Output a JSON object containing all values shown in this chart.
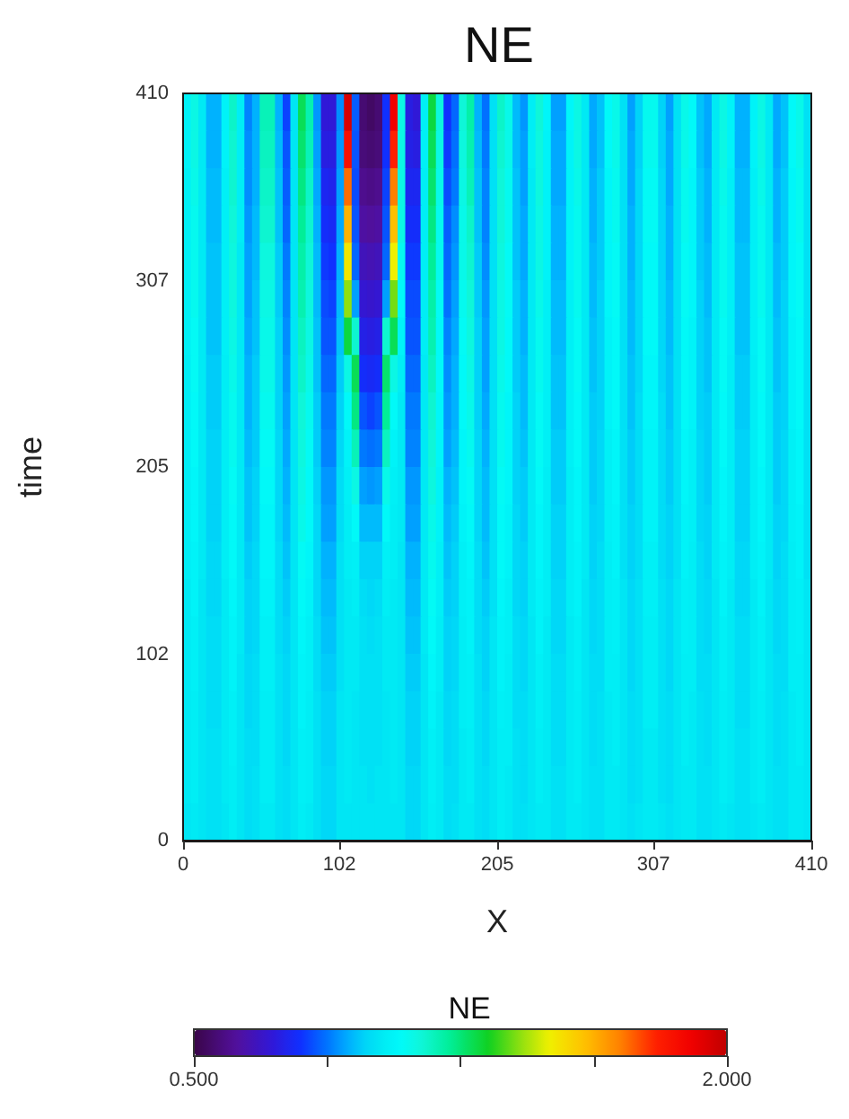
{
  "chart_data": {
    "type": "heatmap",
    "title": "NE",
    "xlabel": "X",
    "ylabel": "time",
    "clabel": "NE",
    "x": [
      2.5,
      7.5,
      12.5,
      17.5,
      22.5,
      27.5,
      32.5,
      37.5,
      42.5,
      47.5,
      52.5,
      57.5,
      62.5,
      67.5,
      72.5,
      77.5,
      82.5,
      87.5,
      92.5,
      97.5,
      102.5,
      107.5,
      112.5,
      117.5,
      122.5,
      127.5,
      132.5,
      137.5,
      142.5,
      147.5,
      152.5,
      157.5,
      162.5,
      167.5,
      172.5,
      177.5,
      182.5,
      187.5,
      192.5,
      197.5,
      202.5,
      207.5,
      212.5,
      217.5,
      222.5,
      227.5,
      232.5,
      237.5,
      242.5,
      247.5,
      252.5,
      257.5,
      262.5,
      267.5,
      272.5,
      277.5,
      282.5,
      287.5,
      292.5,
      297.5,
      302.5,
      307.5,
      312.5,
      317.5,
      322.5,
      327.5,
      332.5,
      337.5,
      342.5,
      347.5,
      352.5,
      357.5,
      362.5,
      367.5,
      372.5,
      377.5,
      382.5,
      387.5,
      392.5,
      397.5,
      402.5,
      407.5
    ],
    "y": [
      399.75,
      379.25,
      358.75,
      338.25,
      317.75,
      297.25,
      276.75,
      256.25,
      235.75,
      215.25,
      194.75,
      174.25,
      153.75,
      133.25,
      112.75,
      92.25,
      71.75,
      51.25,
      30.75,
      10.25
    ],
    "cells": [
      [
        1.06,
        1.12,
        1.03,
        0.94,
        0.94,
        1.06,
        1.16,
        1.04,
        0.89,
        0.94,
        1.18,
        1.18,
        0.94,
        0.82,
        1.02,
        1.28,
        1.19,
        0.91,
        0.72,
        0.72,
        0.9,
        1.95,
        0.85,
        0.56,
        0.54,
        0.56,
        0.8,
        1.9,
        1.12,
        0.74,
        0.72,
        1.05,
        1.3,
        1.13,
        0.8,
        0.86,
        1.14,
        1.2,
        0.94,
        0.87,
        1.01,
        1.16,
        1.11,
        0.95,
        0.91,
        1.04,
        1.14,
        1.07,
        0.92,
        0.92,
        1.07,
        1.12,
        1.03,
        0.93,
        0.96,
        1.08,
        1.11,
        1.01,
        0.92,
        0.98,
        1.1,
        1.1,
        0.98,
        0.92,
        1.01,
        1.11,
        1.08,
        0.96,
        0.93,
        1.03,
        1.12,
        1.06,
        0.94,
        0.94,
        1.06,
        1.12,
        1.03,
        0.93,
        0.96,
        1.08,
        1.11,
        1.01
      ],
      [
        1.06,
        1.12,
        1.03,
        0.94,
        0.94,
        1.06,
        1.15,
        1.04,
        0.9,
        0.94,
        1.17,
        1.17,
        0.95,
        0.84,
        1.02,
        1.26,
        1.18,
        0.92,
        0.74,
        0.74,
        0.91,
        1.85,
        0.84,
        0.57,
        0.56,
        0.57,
        0.8,
        1.8,
        1.12,
        0.75,
        0.74,
        1.05,
        1.28,
        1.12,
        0.81,
        0.87,
        1.13,
        1.19,
        0.95,
        0.88,
        1.01,
        1.15,
        1.11,
        0.95,
        0.92,
        1.04,
        1.13,
        1.06,
        0.93,
        0.93,
        1.06,
        1.12,
        1.03,
        0.93,
        0.96,
        1.08,
        1.11,
        1.01,
        0.93,
        0.98,
        1.1,
        1.1,
        0.98,
        0.93,
        1.01,
        1.11,
        1.08,
        0.96,
        0.93,
        1.03,
        1.12,
        1.06,
        0.94,
        0.94,
        1.06,
        1.12,
        1.03,
        0.93,
        0.96,
        1.08,
        1.11,
        1.01
      ],
      [
        1.05,
        1.11,
        1.03,
        0.95,
        0.95,
        1.05,
        1.15,
        1.04,
        0.9,
        0.94,
        1.16,
        1.16,
        0.96,
        0.85,
        1.02,
        1.24,
        1.16,
        0.93,
        0.77,
        0.76,
        0.92,
        1.72,
        0.83,
        0.6,
        0.59,
        0.6,
        0.82,
        1.7,
        1.12,
        0.77,
        0.77,
        1.04,
        1.26,
        1.11,
        0.83,
        0.88,
        1.12,
        1.18,
        0.96,
        0.89,
        1.01,
        1.14,
        1.1,
        0.96,
        0.92,
        1.03,
        1.13,
        1.06,
        0.93,
        0.93,
        1.06,
        1.11,
        1.03,
        0.94,
        0.97,
        1.07,
        1.1,
        1.01,
        0.93,
        0.99,
        1.09,
        1.09,
        0.99,
        0.93,
        1.01,
        1.1,
        1.07,
        0.97,
        0.94,
        1.03,
        1.11,
        1.05,
        0.95,
        0.95,
        1.05,
        1.11,
        1.03,
        0.94,
        0.97,
        1.07,
        1.1,
        1.01
      ],
      [
        1.05,
        1.1,
        1.03,
        0.95,
        0.95,
        1.05,
        1.14,
        1.04,
        0.91,
        0.95,
        1.15,
        1.15,
        0.96,
        0.86,
        1.02,
        1.22,
        1.15,
        0.94,
        0.79,
        0.78,
        0.93,
        1.62,
        0.84,
        0.63,
        0.62,
        0.63,
        0.84,
        1.6,
        1.12,
        0.79,
        0.79,
        1.04,
        1.24,
        1.1,
        0.85,
        0.9,
        1.11,
        1.16,
        0.96,
        0.89,
        1.01,
        1.14,
        1.1,
        0.96,
        0.93,
        1.03,
        1.12,
        1.06,
        0.94,
        0.94,
        1.06,
        1.1,
        1.03,
        0.94,
        0.97,
        1.07,
        1.1,
        1.01,
        0.94,
        0.99,
        1.09,
        1.09,
        0.99,
        0.94,
        1.01,
        1.1,
        1.07,
        0.97,
        0.94,
        1.03,
        1.1,
        1.05,
        0.95,
        0.95,
        1.05,
        1.1,
        1.03,
        0.94,
        0.97,
        1.07,
        1.1,
        1.01
      ],
      [
        1.05,
        1.1,
        1.03,
        0.96,
        0.96,
        1.05,
        1.13,
        1.03,
        0.92,
        0.95,
        1.13,
        1.13,
        0.97,
        0.88,
        1.02,
        1.2,
        1.14,
        0.95,
        0.81,
        0.8,
        0.94,
        1.52,
        0.86,
        0.67,
        0.66,
        0.67,
        0.86,
        1.5,
        1.1,
        0.81,
        0.81,
        1.04,
        1.22,
        1.1,
        0.86,
        0.91,
        1.11,
        1.15,
        0.97,
        0.9,
        1.01,
        1.13,
        1.09,
        0.96,
        0.93,
        1.03,
        1.12,
        1.06,
        0.94,
        0.94,
        1.06,
        1.1,
        1.03,
        0.95,
        0.97,
        1.07,
        1.09,
        1.01,
        0.94,
        0.99,
        1.08,
        1.08,
        0.99,
        0.94,
        1.01,
        1.09,
        1.07,
        0.97,
        0.95,
        1.03,
        1.1,
        1.05,
        0.96,
        0.96,
        1.05,
        1.1,
        1.03,
        0.95,
        0.97,
        1.07,
        1.09,
        1.01
      ],
      [
        1.05,
        1.1,
        1.03,
        0.96,
        0.96,
        1.05,
        1.13,
        1.03,
        0.92,
        0.96,
        1.12,
        1.12,
        0.97,
        0.89,
        1.02,
        1.19,
        1.13,
        0.95,
        0.83,
        0.82,
        0.95,
        1.42,
        0.92,
        0.71,
        0.7,
        0.71,
        0.92,
        1.4,
        1.08,
        0.83,
        0.83,
        1.04,
        1.2,
        1.09,
        0.87,
        0.92,
        1.1,
        1.14,
        0.97,
        0.91,
        1.01,
        1.12,
        1.09,
        0.97,
        0.94,
        1.03,
        1.11,
        1.05,
        0.95,
        0.95,
        1.05,
        1.1,
        1.03,
        0.95,
        0.98,
        1.07,
        1.09,
        1.01,
        0.95,
        0.99,
        1.08,
        1.08,
        0.99,
        0.95,
        1.01,
        1.09,
        1.07,
        0.98,
        0.95,
        1.03,
        1.1,
        1.05,
        0.96,
        0.96,
        1.05,
        1.1,
        1.03,
        0.95,
        0.98,
        1.07,
        1.09,
        1.01
      ],
      [
        1.05,
        1.09,
        1.03,
        0.96,
        0.96,
        1.05,
        1.12,
        1.03,
        0.93,
        0.96,
        1.11,
        1.11,
        0.98,
        0.9,
        1.02,
        1.17,
        1.12,
        0.96,
        0.84,
        0.84,
        0.96,
        1.3,
        1.15,
        0.75,
        0.74,
        0.75,
        1.15,
        1.28,
        1.06,
        0.84,
        0.84,
        1.04,
        1.19,
        1.08,
        0.89,
        0.93,
        1.09,
        1.13,
        0.98,
        0.92,
        1.01,
        1.12,
        1.08,
        0.97,
        0.94,
        1.03,
        1.1,
        1.05,
        0.95,
        0.95,
        1.05,
        1.09,
        1.03,
        0.96,
        0.98,
        1.06,
        1.08,
        1.01,
        0.95,
        0.99,
        1.08,
        1.08,
        0.99,
        0.95,
        1.01,
        1.08,
        1.06,
        0.98,
        0.96,
        1.03,
        1.09,
        1.05,
        0.96,
        0.96,
        1.05,
        1.09,
        1.03,
        0.96,
        0.98,
        1.06,
        1.08,
        1.01
      ],
      [
        1.04,
        1.09,
        1.03,
        0.97,
        0.97,
        1.04,
        1.11,
        1.03,
        0.94,
        0.97,
        1.11,
        1.11,
        0.98,
        0.91,
        1.02,
        1.16,
        1.11,
        0.96,
        0.86,
        0.86,
        0.97,
        1.12,
        1.28,
        0.79,
        0.78,
        0.79,
        1.26,
        1.12,
        1.04,
        0.86,
        0.86,
        1.03,
        1.17,
        1.08,
        0.9,
        0.94,
        1.08,
        1.12,
        0.98,
        0.92,
        1.01,
        1.11,
        1.08,
        0.97,
        0.95,
        1.03,
        1.1,
        1.05,
        0.96,
        0.96,
        1.05,
        1.09,
        1.03,
        0.96,
        0.98,
        1.06,
        1.08,
        1.01,
        0.96,
        0.99,
        1.07,
        1.07,
        0.99,
        0.96,
        1.01,
        1.08,
        1.06,
        0.98,
        0.96,
        1.03,
        1.09,
        1.04,
        0.97,
        0.97,
        1.04,
        1.09,
        1.03,
        0.96,
        0.98,
        1.06,
        1.08,
        1.01
      ],
      [
        1.04,
        1.08,
        1.03,
        0.97,
        0.97,
        1.04,
        1.1,
        1.03,
        0.94,
        0.97,
        1.1,
        1.1,
        0.98,
        0.92,
        1.02,
        1.14,
        1.1,
        0.97,
        0.88,
        0.88,
        0.98,
        1.08,
        1.24,
        0.84,
        0.82,
        0.84,
        1.22,
        1.08,
        1.03,
        0.88,
        0.88,
        1.03,
        1.15,
        1.07,
        0.91,
        0.94,
        1.08,
        1.11,
        0.98,
        0.93,
        1.01,
        1.1,
        1.07,
        0.98,
        0.95,
        1.03,
        1.09,
        1.05,
        0.96,
        0.96,
        1.05,
        1.08,
        1.03,
        0.97,
        0.98,
        1.06,
        1.08,
        1.01,
        0.96,
        1.0,
        1.07,
        1.07,
        1.0,
        0.96,
        1.01,
        1.08,
        1.06,
        0.98,
        0.97,
        1.03,
        1.08,
        1.04,
        0.97,
        0.97,
        1.04,
        1.08,
        1.03,
        0.97,
        0.98,
        1.06,
        1.08,
        1.01
      ],
      [
        1.04,
        1.08,
        1.03,
        0.98,
        0.98,
        1.04,
        1.1,
        1.03,
        0.95,
        0.97,
        1.09,
        1.09,
        0.99,
        0.93,
        1.02,
        1.13,
        1.09,
        0.97,
        0.89,
        0.89,
        0.99,
        1.06,
        1.18,
        0.88,
        0.87,
        0.88,
        1.17,
        1.06,
        1.03,
        0.89,
        0.89,
        1.03,
        1.14,
        1.07,
        0.92,
        0.95,
        1.07,
        1.1,
        0.99,
        0.94,
        1.01,
        1.1,
        1.07,
        0.98,
        0.96,
        1.03,
        1.09,
        1.05,
        0.97,
        0.97,
        1.05,
        1.08,
        1.03,
        0.97,
        0.99,
        1.05,
        1.07,
        1.01,
        0.97,
        1.0,
        1.06,
        1.06,
        1.0,
        0.97,
        1.01,
        1.07,
        1.05,
        0.99,
        0.97,
        1.03,
        1.08,
        1.04,
        0.98,
        0.98,
        1.04,
        1.08,
        1.03,
        0.97,
        0.99,
        1.05,
        1.07,
        1.01
      ],
      [
        1.04,
        1.07,
        1.03,
        0.98,
        0.98,
        1.04,
        1.09,
        1.03,
        0.96,
        0.98,
        1.08,
        1.08,
        0.99,
        0.94,
        1.02,
        1.12,
        1.08,
        0.98,
        0.91,
        0.91,
        1.0,
        1.05,
        1.12,
        0.92,
        0.91,
        0.92,
        1.11,
        1.05,
        1.03,
        0.91,
        0.91,
        1.03,
        1.13,
        1.06,
        0.94,
        0.96,
        1.07,
        1.09,
        0.99,
        0.95,
        1.01,
        1.09,
        1.07,
        0.98,
        0.97,
        1.03,
        1.08,
        1.04,
        0.97,
        0.97,
        1.04,
        1.07,
        1.03,
        0.97,
        0.99,
        1.05,
        1.07,
        1.01,
        0.97,
        1.0,
        1.06,
        1.06,
        1.0,
        0.97,
        1.01,
        1.07,
        1.05,
        0.99,
        0.97,
        1.03,
        1.07,
        1.04,
        0.98,
        0.98,
        1.04,
        1.07,
        1.03,
        0.97,
        0.99,
        1.05,
        1.07,
        1.01
      ],
      [
        1.04,
        1.07,
        1.03,
        0.98,
        0.98,
        1.04,
        1.08,
        1.03,
        0.96,
        0.98,
        1.07,
        1.07,
        0.99,
        0.95,
        1.02,
        1.11,
        1.08,
        0.99,
        0.92,
        0.92,
        1.0,
        1.04,
        1.08,
        0.95,
        0.95,
        0.95,
        1.08,
        1.04,
        1.03,
        0.92,
        0.92,
        1.03,
        1.11,
        1.06,
        0.95,
        0.97,
        1.06,
        1.08,
        0.99,
        0.95,
        1.01,
        1.08,
        1.06,
        0.99,
        0.97,
        1.03,
        1.07,
        1.04,
        0.98,
        0.98,
        1.04,
        1.07,
        1.03,
        0.98,
        0.99,
        1.05,
        1.06,
        1.01,
        0.98,
        1.0,
        1.06,
        1.06,
        1.0,
        0.98,
        1.01,
        1.06,
        1.05,
        0.99,
        0.98,
        1.03,
        1.07,
        1.04,
        0.98,
        0.98,
        1.04,
        1.07,
        1.03,
        0.98,
        0.99,
        1.05,
        1.06,
        1.01
      ],
      [
        1.04,
        1.06,
        1.03,
        0.99,
        0.99,
        1.04,
        1.08,
        1.03,
        0.97,
        0.99,
        1.07,
        1.07,
        1.0,
        0.96,
        1.02,
        1.09,
        1.07,
        0.99,
        0.94,
        0.94,
        1.01,
        1.04,
        1.05,
        0.98,
        0.98,
        0.98,
        1.05,
        1.04,
        1.02,
        0.94,
        0.94,
        1.03,
        1.1,
        1.05,
        0.96,
        0.98,
        1.05,
        1.07,
        1.0,
        0.96,
        1.01,
        1.08,
        1.06,
        0.99,
        0.98,
        1.03,
        1.07,
        1.04,
        0.98,
        0.98,
        1.04,
        1.06,
        1.03,
        0.98,
        1.0,
        1.04,
        1.06,
        1.01,
        0.98,
        1.0,
        1.05,
        1.05,
        1.0,
        0.98,
        1.01,
        1.06,
        1.04,
        1.0,
        0.98,
        1.03,
        1.06,
        1.04,
        0.99,
        0.99,
        1.04,
        1.06,
        1.03,
        0.98,
        1.0,
        1.04,
        1.06,
        1.01
      ],
      [
        1.03,
        1.06,
        1.02,
        0.99,
        0.99,
        1.03,
        1.07,
        1.03,
        0.98,
        0.99,
        1.06,
        1.06,
        1.0,
        0.97,
        1.02,
        1.08,
        1.06,
        0.99,
        0.95,
        0.95,
        1.01,
        1.03,
        1.04,
        1.0,
        0.99,
        1.0,
        1.04,
        1.03,
        1.02,
        0.95,
        0.95,
        1.03,
        1.09,
        1.05,
        0.97,
        0.98,
        1.05,
        1.06,
        1.0,
        0.97,
        1.01,
        1.07,
        1.05,
        0.99,
        0.98,
        1.03,
        1.06,
        1.04,
        0.99,
        0.99,
        1.04,
        1.06,
        1.02,
        0.99,
        1.0,
        1.04,
        1.05,
        1.02,
        0.99,
        1.01,
        1.05,
        1.05,
        1.01,
        0.99,
        1.02,
        1.05,
        1.04,
        1.0,
        0.99,
        1.02,
        1.06,
        1.03,
        0.99,
        0.99,
        1.03,
        1.06,
        1.02,
        0.99,
        1.0,
        1.04,
        1.05,
        1.02
      ],
      [
        1.03,
        1.05,
        1.02,
        1.0,
        1.0,
        1.03,
        1.06,
        1.03,
        0.98,
        0.99,
        1.05,
        1.05,
        1.0,
        0.98,
        1.02,
        1.07,
        1.05,
        1.0,
        0.96,
        0.96,
        1.01,
        1.03,
        1.03,
        1.01,
        1.0,
        1.01,
        1.03,
        1.03,
        1.02,
        0.96,
        0.96,
        1.03,
        1.08,
        1.04,
        0.98,
        0.99,
        1.04,
        1.06,
        1.0,
        0.98,
        1.02,
        1.06,
        1.05,
        1.0,
        0.99,
        1.02,
        1.06,
        1.03,
        0.99,
        0.99,
        1.03,
        1.05,
        1.02,
        0.99,
        1.0,
        1.04,
        1.05,
        1.02,
        0.99,
        1.01,
        1.04,
        1.04,
        1.01,
        0.99,
        1.02,
        1.05,
        1.04,
        1.0,
        0.99,
        1.02,
        1.05,
        1.03,
        1.0,
        1.0,
        1.03,
        1.05,
        1.02,
        0.99,
        1.0,
        1.04,
        1.05,
        1.02
      ],
      [
        1.03,
        1.05,
        1.02,
        1.0,
        1.0,
        1.03,
        1.06,
        1.02,
        0.99,
        1.0,
        1.05,
        1.05,
        1.01,
        0.99,
        1.02,
        1.06,
        1.05,
        1.0,
        0.97,
        0.97,
        1.01,
        1.03,
        1.03,
        1.01,
        1.01,
        1.01,
        1.03,
        1.03,
        1.02,
        0.97,
        0.97,
        1.02,
        1.07,
        1.04,
        0.98,
        0.99,
        1.04,
        1.05,
        1.01,
        0.98,
        1.02,
        1.06,
        1.04,
        1.0,
        0.99,
        1.02,
        1.05,
        1.03,
        1.0,
        1.0,
        1.03,
        1.05,
        1.02,
        1.0,
        1.0,
        1.04,
        1.04,
        1.02,
        0.99,
        1.01,
        1.04,
        1.04,
        1.01,
        0.99,
        1.02,
        1.04,
        1.04,
        1.0,
        1.0,
        1.02,
        1.05,
        1.03,
        1.0,
        1.0,
        1.03,
        1.05,
        1.02,
        1.0,
        1.0,
        1.04,
        1.04,
        1.02
      ],
      [
        1.03,
        1.04,
        1.02,
        1.0,
        1.0,
        1.03,
        1.05,
        1.02,
        0.99,
        1.0,
        1.04,
        1.04,
        1.01,
        0.99,
        1.02,
        1.06,
        1.04,
        1.01,
        0.98,
        0.98,
        1.02,
        1.03,
        1.02,
        1.01,
        1.01,
        1.01,
        1.02,
        1.03,
        1.02,
        0.98,
        0.98,
        1.02,
        1.06,
        1.03,
        0.99,
        1.0,
        1.04,
        1.05,
        1.01,
        0.99,
        1.02,
        1.05,
        1.04,
        1.0,
        1.0,
        1.02,
        1.05,
        1.03,
        1.0,
        1.0,
        1.03,
        1.04,
        1.02,
        1.0,
        1.01,
        1.03,
        1.04,
        1.02,
        1.0,
        1.01,
        1.04,
        1.04,
        1.01,
        1.0,
        1.02,
        1.04,
        1.03,
        1.01,
        1.0,
        1.02,
        1.04,
        1.03,
        1.0,
        1.0,
        1.03,
        1.04,
        1.02,
        1.0,
        1.01,
        1.03,
        1.04,
        1.02
      ],
      [
        1.03,
        1.04,
        1.02,
        1.01,
        1.01,
        1.03,
        1.05,
        1.02,
        1.0,
        1.0,
        1.04,
        1.04,
        1.01,
        0.99,
        1.02,
        1.05,
        1.04,
        1.01,
        0.98,
        0.98,
        1.02,
        1.03,
        1.02,
        1.01,
        1.01,
        1.01,
        1.02,
        1.03,
        1.02,
        0.98,
        0.98,
        1.02,
        1.05,
        1.03,
        0.99,
        1.0,
        1.03,
        1.04,
        1.01,
        0.99,
        1.02,
        1.04,
        1.04,
        1.01,
        1.0,
        1.02,
        1.04,
        1.03,
        1.0,
        1.0,
        1.03,
        1.04,
        1.02,
        1.0,
        1.01,
        1.03,
        1.04,
        1.02,
        1.0,
        1.01,
        1.03,
        1.03,
        1.01,
        1.0,
        1.02,
        1.04,
        1.03,
        1.01,
        1.0,
        1.02,
        1.04,
        1.03,
        1.01,
        1.01,
        1.03,
        1.04,
        1.02,
        1.0,
        1.01,
        1.03,
        1.04,
        1.02
      ],
      [
        1.03,
        1.04,
        1.02,
        1.01,
        1.01,
        1.03,
        1.04,
        1.02,
        1.0,
        1.01,
        1.04,
        1.04,
        1.01,
        1.0,
        1.02,
        1.05,
        1.04,
        1.01,
        0.99,
        0.99,
        1.02,
        1.03,
        1.02,
        1.02,
        1.01,
        1.02,
        1.02,
        1.03,
        1.02,
        0.99,
        0.99,
        1.02,
        1.05,
        1.03,
        1.0,
        1.0,
        1.03,
        1.04,
        1.01,
        1.0,
        1.02,
        1.04,
        1.03,
        1.01,
        1.0,
        1.02,
        1.04,
        1.03,
        1.01,
        1.01,
        1.03,
        1.04,
        1.02,
        1.01,
        1.01,
        1.03,
        1.03,
        1.02,
        1.0,
        1.01,
        1.03,
        1.03,
        1.01,
        1.0,
        1.02,
        1.03,
        1.03,
        1.01,
        1.01,
        1.02,
        1.04,
        1.03,
        1.01,
        1.01,
        1.03,
        1.04,
        1.02,
        1.01,
        1.01,
        1.03,
        1.03,
        1.02
      ],
      [
        1.02,
        1.03,
        1.02,
        1.01,
        1.01,
        1.02,
        1.04,
        1.02,
        1.0,
        1.01,
        1.03,
        1.03,
        1.01,
        1.0,
        1.02,
        1.04,
        1.03,
        1.01,
        0.99,
        0.99,
        1.02,
        1.02,
        1.02,
        1.02,
        1.02,
        1.02,
        1.02,
        1.02,
        1.02,
        0.99,
        0.99,
        1.02,
        1.04,
        1.03,
        1.0,
        1.01,
        1.03,
        1.03,
        1.01,
        1.0,
        1.02,
        1.04,
        1.03,
        1.01,
        1.01,
        1.02,
        1.03,
        1.03,
        1.01,
        1.01,
        1.03,
        1.03,
        1.02,
        1.01,
        1.01,
        1.03,
        1.03,
        1.02,
        1.01,
        1.02,
        1.03,
        1.03,
        1.02,
        1.01,
        1.02,
        1.03,
        1.03,
        1.01,
        1.01,
        1.02,
        1.03,
        1.02,
        1.01,
        1.01,
        1.02,
        1.03,
        1.02,
        1.01,
        1.01,
        1.03,
        1.03,
        1.02
      ]
    ],
    "xlim": [
      0,
      410
    ],
    "ylim": [
      0,
      410
    ],
    "xticks": [
      0,
      102,
      205,
      307,
      410
    ],
    "yticks": [
      0,
      102,
      205,
      307,
      410
    ],
    "clim": [
      0.5,
      2
    ],
    "cticks": [
      {
        "value": 0.5,
        "label": "0.500"
      },
      {
        "value": 0.875,
        "label": null
      },
      {
        "value": 1.25,
        "label": null
      },
      {
        "value": 1.625,
        "label": null
      },
      {
        "value": 2,
        "label": "2.000"
      }
    ]
  }
}
